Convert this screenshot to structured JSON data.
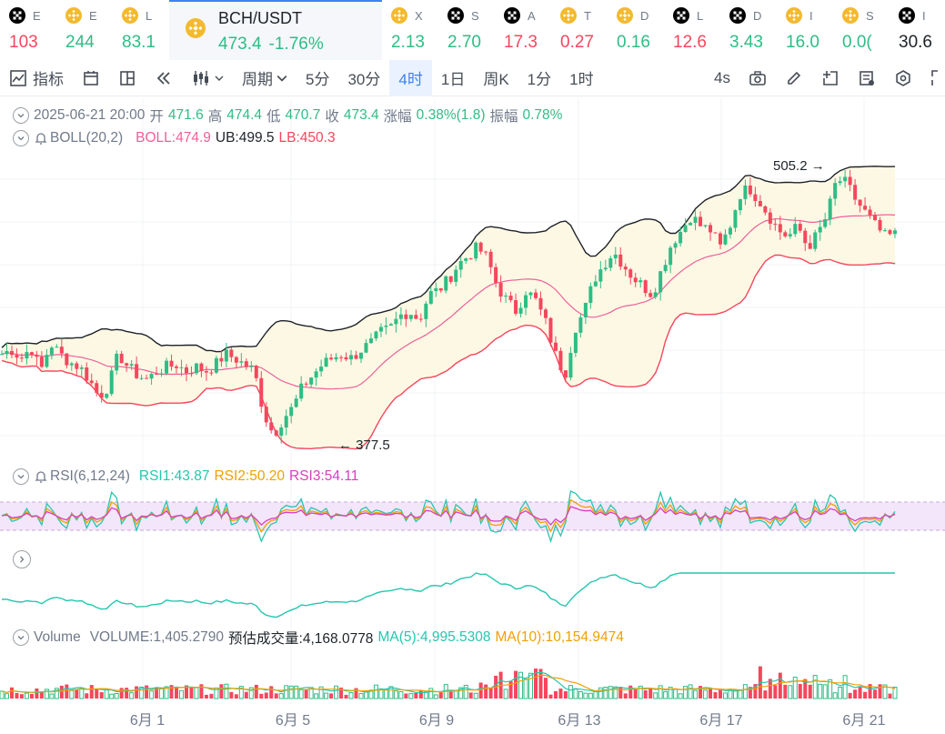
{
  "ticker": [
    {
      "icon": "okx-icon",
      "label": "E",
      "value": "103",
      "color": "#f6465d",
      "w": 62
    },
    {
      "icon": "binance-icon",
      "label": "E",
      "value": "244",
      "color": "#2ebd85",
      "w": 62
    },
    {
      "icon": "binance-icon",
      "label": "L",
      "value": "83.1",
      "color": "#2ebd85",
      "w": 62
    },
    {
      "icon": "binance-icon",
      "label": "BCH/USDT",
      "value": "473.4",
      "change": "-1.76%",
      "color": "#2ebd85",
      "w": 234,
      "active": true
    },
    {
      "icon": "binance-icon",
      "label": "X",
      "value": "2.13",
      "color": "#2ebd85",
      "w": 62
    },
    {
      "icon": "okx-icon",
      "label": "S",
      "value": "2.70",
      "color": "#2ebd85",
      "w": 62
    },
    {
      "icon": "okx-icon",
      "label": "A",
      "value": "17.3",
      "color": "#f6465d",
      "w": 62
    },
    {
      "icon": "binance-icon",
      "label": "T",
      "value": "0.27",
      "color": "#f6465d",
      "w": 62
    },
    {
      "icon": "binance-icon",
      "label": "D",
      "value": "0.16",
      "color": "#2ebd85",
      "w": 62
    },
    {
      "icon": "okx-icon",
      "label": "L",
      "value": "12.6",
      "color": "#f6465d",
      "w": 62
    },
    {
      "icon": "okx-icon",
      "label": "D",
      "value": "3.43",
      "color": "#2ebd85",
      "w": 62
    },
    {
      "icon": "binance-icon",
      "label": "I",
      "value": "16.0",
      "color": "#2ebd85",
      "w": 62
    },
    {
      "icon": "binance-icon",
      "label": "S",
      "value": "0.0(",
      "color": "#2ebd85",
      "w": 62
    },
    {
      "icon": "okx-icon",
      "label": "I",
      "value": "30.6",
      "color": "#1e2329",
      "w": 62
    }
  ],
  "toolbar": {
    "indicators": "指标",
    "period": "周期",
    "intervals": [
      "5分",
      "30分",
      "4时",
      "1日",
      "周K",
      "1分",
      "1时"
    ],
    "active_interval": "4时",
    "refresh": "4s"
  },
  "ohlc": {
    "date": "2025-06-21 20:00",
    "open_label": "开",
    "open": "471.6",
    "high_label": "高",
    "high": "474.4",
    "low_label": "低",
    "low": "470.7",
    "close_label": "收",
    "close": "473.4",
    "change_label": "涨幅",
    "change": "0.38%(1.8)",
    "amp_label": "振幅",
    "amp": "0.78%"
  },
  "boll": {
    "name": "BOLL(20,2)",
    "boll": "BOLL:474.9",
    "ub": "UB:499.5",
    "lb": "LB:450.3"
  },
  "rsi": {
    "name": "RSI(6,12,24)",
    "rsi1": "RSI1:43.87",
    "rsi2": "RSI2:50.20",
    "rsi3": "RSI3:54.11"
  },
  "volume": {
    "name": "Volume",
    "volume": "VOLUME:1,405.2790",
    "estimate": "预估成交量:4,168.0778",
    "ma5": "MA(5):4,995.5308",
    "ma10": "MA(10):10,154.9474"
  },
  "chart_data": {
    "type": "candlestick",
    "x_ticks": [
      "6月 1",
      "6月 5",
      "6月 9",
      "6月 13",
      "6月 17",
      "6月 21"
    ],
    "max_label": "505.2",
    "min_label": "377.5",
    "colors": {
      "up": "#2ebd85",
      "down": "#f6465d",
      "boll": "#f0609a",
      "ub": "#1e2329",
      "lb": "#f6465d",
      "band": "#fdf8e4",
      "rsi1": "#26c6ae",
      "rsi2": "#f0a000",
      "rsi3": "#d63fc0"
    },
    "price_path": [
      420,
      422,
      418,
      423,
      412,
      425,
      420,
      416,
      414,
      408,
      400,
      405,
      420,
      414,
      410,
      408,
      412,
      414,
      415,
      412,
      414,
      412,
      415,
      420,
      418,
      415,
      412,
      392,
      382,
      390,
      395,
      405,
      410,
      415,
      418,
      420,
      418,
      422,
      425,
      430,
      432,
      438,
      440,
      436,
      448,
      450,
      455,
      462,
      466,
      470,
      465,
      452,
      445,
      440,
      450,
      445,
      435,
      420,
      410,
      432,
      440,
      455,
      462,
      468,
      462,
      456,
      452,
      448,
      460,
      472,
      478,
      485,
      480,
      478,
      470,
      480,
      495,
      498,
      492,
      485,
      478,
      475,
      480,
      470,
      476,
      485,
      502,
      500,
      492,
      486,
      480,
      475,
      476
    ]
  }
}
